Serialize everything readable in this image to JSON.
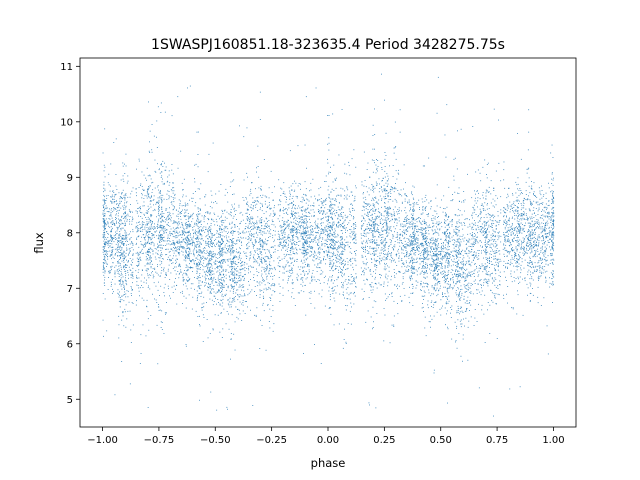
{
  "chart_data": {
    "type": "scatter",
    "title": "1SWASPJ160851.18-323635.4 Period 3428275.75s",
    "xlabel": "phase",
    "ylabel": "flux",
    "xlim": [
      -1.1,
      1.1
    ],
    "ylim": [
      4.5,
      11.15
    ],
    "x_ticks": [
      -1.0,
      -0.75,
      -0.5,
      -0.25,
      0.0,
      0.25,
      0.5,
      0.75,
      1.0
    ],
    "x_tick_labels": [
      "−1.00",
      "−0.75",
      "−0.50",
      "−0.25",
      "0.00",
      "0.25",
      "0.50",
      "0.75",
      "1.00"
    ],
    "y_ticks": [
      5,
      6,
      7,
      8,
      9,
      10,
      11
    ],
    "y_tick_labels": [
      "5",
      "6",
      "7",
      "8",
      "9",
      "10",
      "11"
    ],
    "grid": false,
    "legend": "none",
    "marker_color": "#1f77b4",
    "series_note_visible_points": "dense cloud of small points, phase-folded, mirrored about phase 0",
    "clusters": [
      {
        "x": -0.99,
        "y_center": 8.0,
        "y_spread": 0.45
      },
      {
        "x": -0.93,
        "y_center": 7.9,
        "y_spread": 0.55
      },
      {
        "x": -0.9,
        "y_center": 7.6,
        "y_spread": 0.6
      },
      {
        "x": -0.82,
        "y_center": 7.9,
        "y_spread": 0.55
      },
      {
        "x": -0.77,
        "y_center": 8.1,
        "y_spread": 0.6
      },
      {
        "x": -0.72,
        "y_center": 8.0,
        "y_spread": 0.6
      },
      {
        "x": -0.65,
        "y_center": 7.9,
        "y_spread": 0.45
      },
      {
        "x": -0.6,
        "y_center": 7.8,
        "y_spread": 0.4
      },
      {
        "x": -0.55,
        "y_center": 7.6,
        "y_spread": 0.5
      },
      {
        "x": -0.5,
        "y_center": 7.6,
        "y_spread": 0.45
      },
      {
        "x": -0.45,
        "y_center": 7.55,
        "y_spread": 0.5
      },
      {
        "x": -0.4,
        "y_center": 7.4,
        "y_spread": 0.55
      },
      {
        "x": -0.33,
        "y_center": 7.9,
        "y_spread": 0.5
      },
      {
        "x": -0.27,
        "y_center": 7.7,
        "y_spread": 0.55
      },
      {
        "x": -0.19,
        "y_center": 7.9,
        "y_spread": 0.45
      },
      {
        "x": -0.13,
        "y_center": 8.0,
        "y_spread": 0.45
      },
      {
        "x": -0.08,
        "y_center": 7.9,
        "y_spread": 0.45
      },
      {
        "x": -0.01,
        "y_center": 8.0,
        "y_spread": 0.45
      },
      {
        "x": 0.03,
        "y_center": 7.9,
        "y_spread": 0.5
      },
      {
        "x": 0.09,
        "y_center": 7.8,
        "y_spread": 0.6
      },
      {
        "x": 0.18,
        "y_center": 7.9,
        "y_spread": 0.55
      },
      {
        "x": 0.23,
        "y_center": 8.1,
        "y_spread": 0.6
      },
      {
        "x": 0.28,
        "y_center": 8.0,
        "y_spread": 0.6
      },
      {
        "x": 0.35,
        "y_center": 7.9,
        "y_spread": 0.45
      },
      {
        "x": 0.4,
        "y_center": 7.8,
        "y_spread": 0.4
      },
      {
        "x": 0.45,
        "y_center": 7.6,
        "y_spread": 0.5
      },
      {
        "x": 0.5,
        "y_center": 7.6,
        "y_spread": 0.45
      },
      {
        "x": 0.55,
        "y_center": 7.55,
        "y_spread": 0.5
      },
      {
        "x": 0.6,
        "y_center": 7.4,
        "y_spread": 0.55
      },
      {
        "x": 0.67,
        "y_center": 7.9,
        "y_spread": 0.5
      },
      {
        "x": 0.73,
        "y_center": 7.7,
        "y_spread": 0.55
      },
      {
        "x": 0.81,
        "y_center": 7.9,
        "y_spread": 0.45
      },
      {
        "x": 0.87,
        "y_center": 8.0,
        "y_spread": 0.45
      },
      {
        "x": 0.92,
        "y_center": 7.9,
        "y_spread": 0.45
      },
      {
        "x": 0.99,
        "y_center": 8.0,
        "y_spread": 0.45
      }
    ]
  }
}
